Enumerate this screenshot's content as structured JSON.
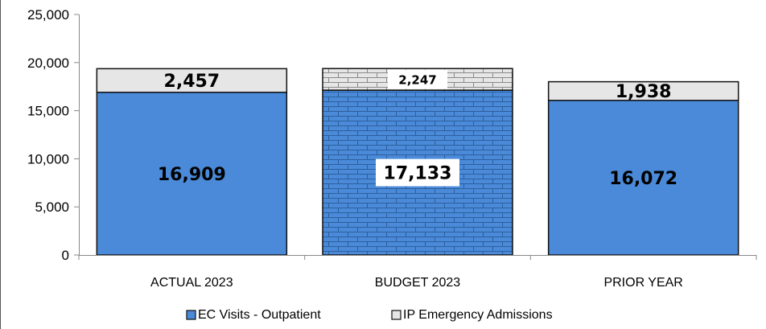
{
  "chart_data": {
    "type": "bar",
    "stacked": true,
    "categories": [
      "ACTUAL 2023",
      "BUDGET 2023",
      "PRIOR YEAR"
    ],
    "series": [
      {
        "name": "EC Visits - Outpatient",
        "values": [
          16909,
          17133,
          16072
        ],
        "labels": [
          "16,909",
          "17,133",
          "16,072"
        ],
        "color": "#4a8ad8"
      },
      {
        "name": "IP Emergency Admissions",
        "values": [
          2457,
          2247,
          1938
        ],
        "labels": [
          "2,457",
          "2,247",
          "1,938"
        ],
        "color": "#e6e6e6"
      }
    ],
    "ylim": [
      0,
      25000
    ],
    "yticks": [
      0,
      5000,
      10000,
      15000,
      20000,
      25000
    ],
    "ytick_labels": [
      "0",
      "5,000",
      "10,000",
      "15,000",
      "20,000",
      "25,000"
    ],
    "budget_pattern": "brick",
    "grid": false,
    "legend_position": "bottom"
  }
}
